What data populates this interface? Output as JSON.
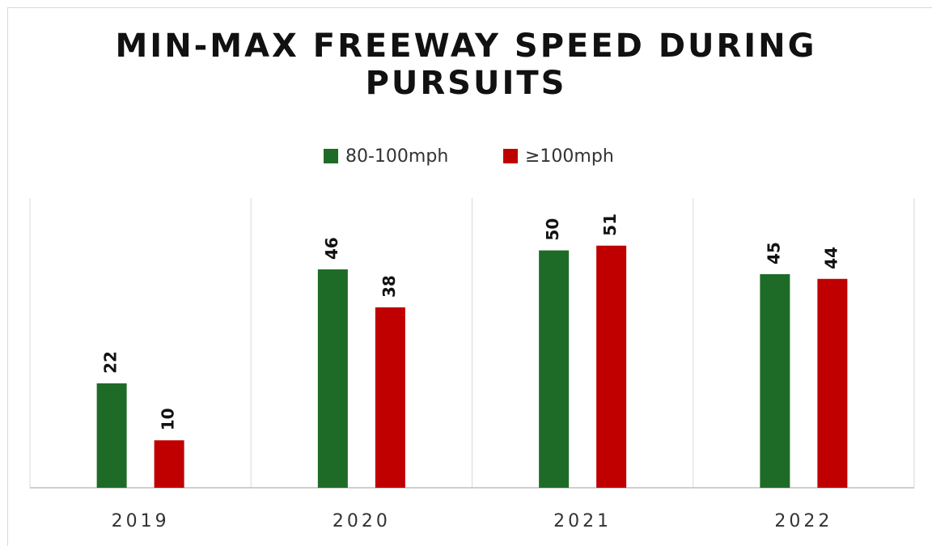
{
  "chart_data": {
    "type": "bar",
    "title": "MIN-MAX FREEWAY SPEED DURING PURSUITS",
    "categories": [
      "2019",
      "2020",
      "2021",
      "2022"
    ],
    "series": [
      {
        "name": "80-100mph",
        "color": "#1e6b28",
        "values": [
          22,
          46,
          50,
          45
        ]
      },
      {
        "name": "≥100mph",
        "color": "#c00000",
        "values": [
          10,
          38,
          51,
          44
        ]
      }
    ],
    "ylim": [
      0,
      61
    ],
    "legend": "top"
  }
}
